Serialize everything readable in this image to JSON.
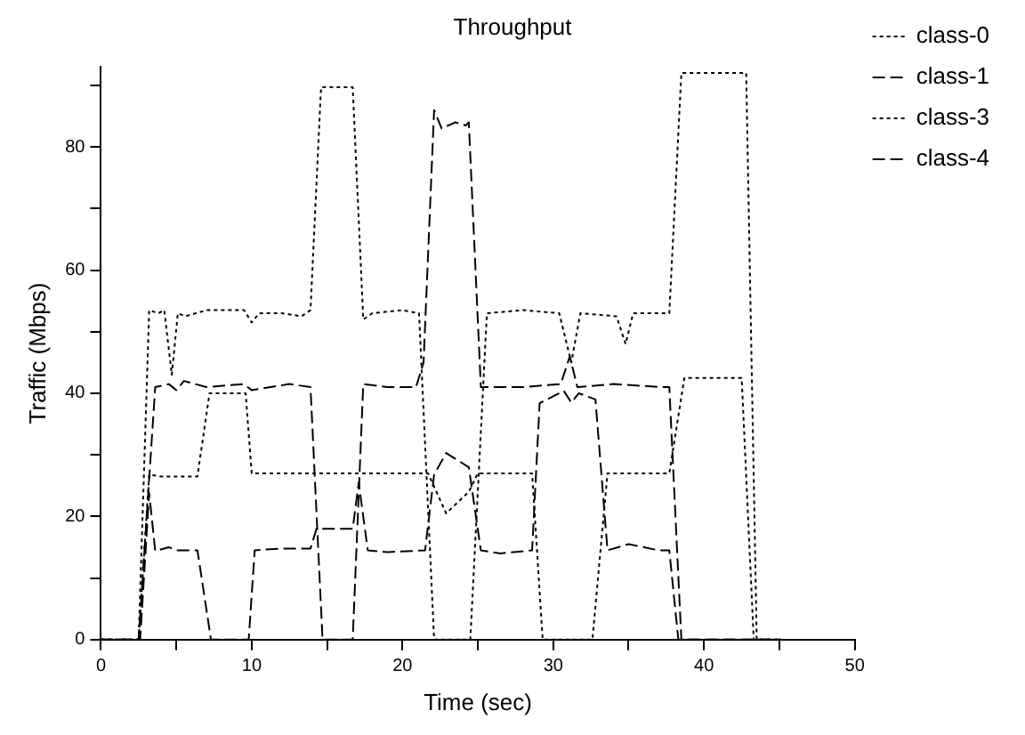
{
  "chart_data": {
    "type": "line",
    "title": "Throughput",
    "xlabel": "Time (sec)",
    "ylabel": "Traffic (Mbps)",
    "xlim": [
      0,
      50
    ],
    "xticks": [
      0,
      {
        "value": 5,
        "label": null
      },
      10,
      {
        "value": 15,
        "label": null
      },
      20,
      {
        "value": 25,
        "label": null
      },
      30,
      {
        "value": 35,
        "label": null
      },
      40,
      {
        "value": 45,
        "label": null
      },
      50
    ],
    "ylim": [
      0,
      93
    ],
    "yticks": [
      0,
      {
        "value": 10,
        "label": null
      },
      20,
      {
        "value": 30,
        "label": null
      },
      40,
      {
        "value": 50,
        "label": null
      },
      60,
      {
        "value": 70,
        "label": null
      },
      80,
      {
        "value": 90,
        "label": null
      }
    ],
    "grid": false,
    "legend": "top right",
    "marker": "none",
    "series": [
      {
        "name": "class-0",
        "color": "#000000",
        "line_style": "dotted",
        "x": [
          0,
          2.5,
          3.2,
          3.8,
          4.2,
          4.7,
          5.1,
          5.6,
          7,
          9.5,
          10,
          10.5,
          12,
          13.3,
          13.9,
          14.6,
          16.7,
          17.4,
          18,
          20,
          21.1,
          22.1,
          24.5,
          25.6,
          28,
          30.4,
          31.2,
          31.8,
          34.2,
          34.8,
          35.3,
          37.7,
          38.5,
          42.8,
          43.5,
          45.1
        ],
        "values": [
          0,
          0,
          53.5,
          53,
          53.5,
          43,
          53,
          52.5,
          53.5,
          53.5,
          51.5,
          53,
          53,
          52.5,
          53.5,
          89.7,
          89.7,
          52,
          53,
          53.5,
          53,
          0,
          0,
          53,
          53.5,
          53,
          45,
          53,
          52.5,
          48,
          53,
          53,
          92,
          92,
          0,
          0
        ]
      },
      {
        "name": "class-1",
        "color": "#000000",
        "line_style": "dashed",
        "x": [
          0,
          2.5,
          3.6,
          4.5,
          5,
          5.5,
          7,
          9.5,
          10,
          12.5,
          13.9,
          14.7,
          16.7,
          17.4,
          19,
          20.9,
          21.4,
          22.1,
          22.6,
          23.5,
          24.2,
          24.4,
          25.2,
          28,
          30.5,
          31.1,
          31.6,
          34,
          37.3,
          37.7,
          38.5,
          45.1
        ],
        "values": [
          0,
          0,
          41,
          41.5,
          40.5,
          42,
          41,
          41.5,
          40.5,
          41.5,
          41,
          0,
          0,
          41.5,
          41,
          41,
          45,
          86,
          83,
          84,
          83.5,
          84,
          41,
          41,
          41.5,
          46,
          41,
          41.5,
          41,
          41,
          0,
          0
        ]
      },
      {
        "name": "class-3",
        "color": "#000000",
        "line_style": "dotted",
        "x": [
          0,
          2.5,
          3.2,
          4,
          6.4,
          7.2,
          9.6,
          10,
          14,
          17.5,
          21.7,
          22.9,
          24.4,
          25,
          28.6,
          29.3,
          32.6,
          33.6,
          37.7,
          38.7,
          42.5,
          43.3,
          45.1
        ],
        "values": [
          0,
          0,
          26.8,
          26.5,
          26.5,
          40,
          40,
          27,
          27,
          27,
          27,
          20.5,
          24,
          27,
          27,
          0,
          0,
          27,
          27,
          42.5,
          42.5,
          0,
          0
        ]
      },
      {
        "name": "class-4",
        "color": "#000000",
        "line_style": "dashed",
        "x": [
          0,
          2.6,
          3.2,
          3.6,
          4.5,
          5,
          6.4,
          7.3,
          9.8,
          10.2,
          12,
          13.9,
          14.3,
          16.7,
          17.1,
          17.7,
          19,
          21.5,
          22.1,
          22.9,
          24.4,
          25.2,
          26.5,
          28.6,
          29.1,
          30,
          30.7,
          31.2,
          31.7,
          32.8,
          33.6,
          35,
          37,
          37.7,
          38.3,
          45.1
        ],
        "values": [
          0,
          0,
          23.8,
          14.4,
          15,
          14.5,
          14.5,
          0,
          0,
          14.5,
          14.8,
          14.8,
          18,
          18,
          25.5,
          14.5,
          14.2,
          14.5,
          26.8,
          30.3,
          28,
          14.5,
          14,
          14.5,
          38.4,
          39.5,
          40.4,
          38.5,
          40,
          39,
          14.5,
          15.5,
          14.5,
          14.5,
          0,
          0
        ]
      }
    ]
  }
}
